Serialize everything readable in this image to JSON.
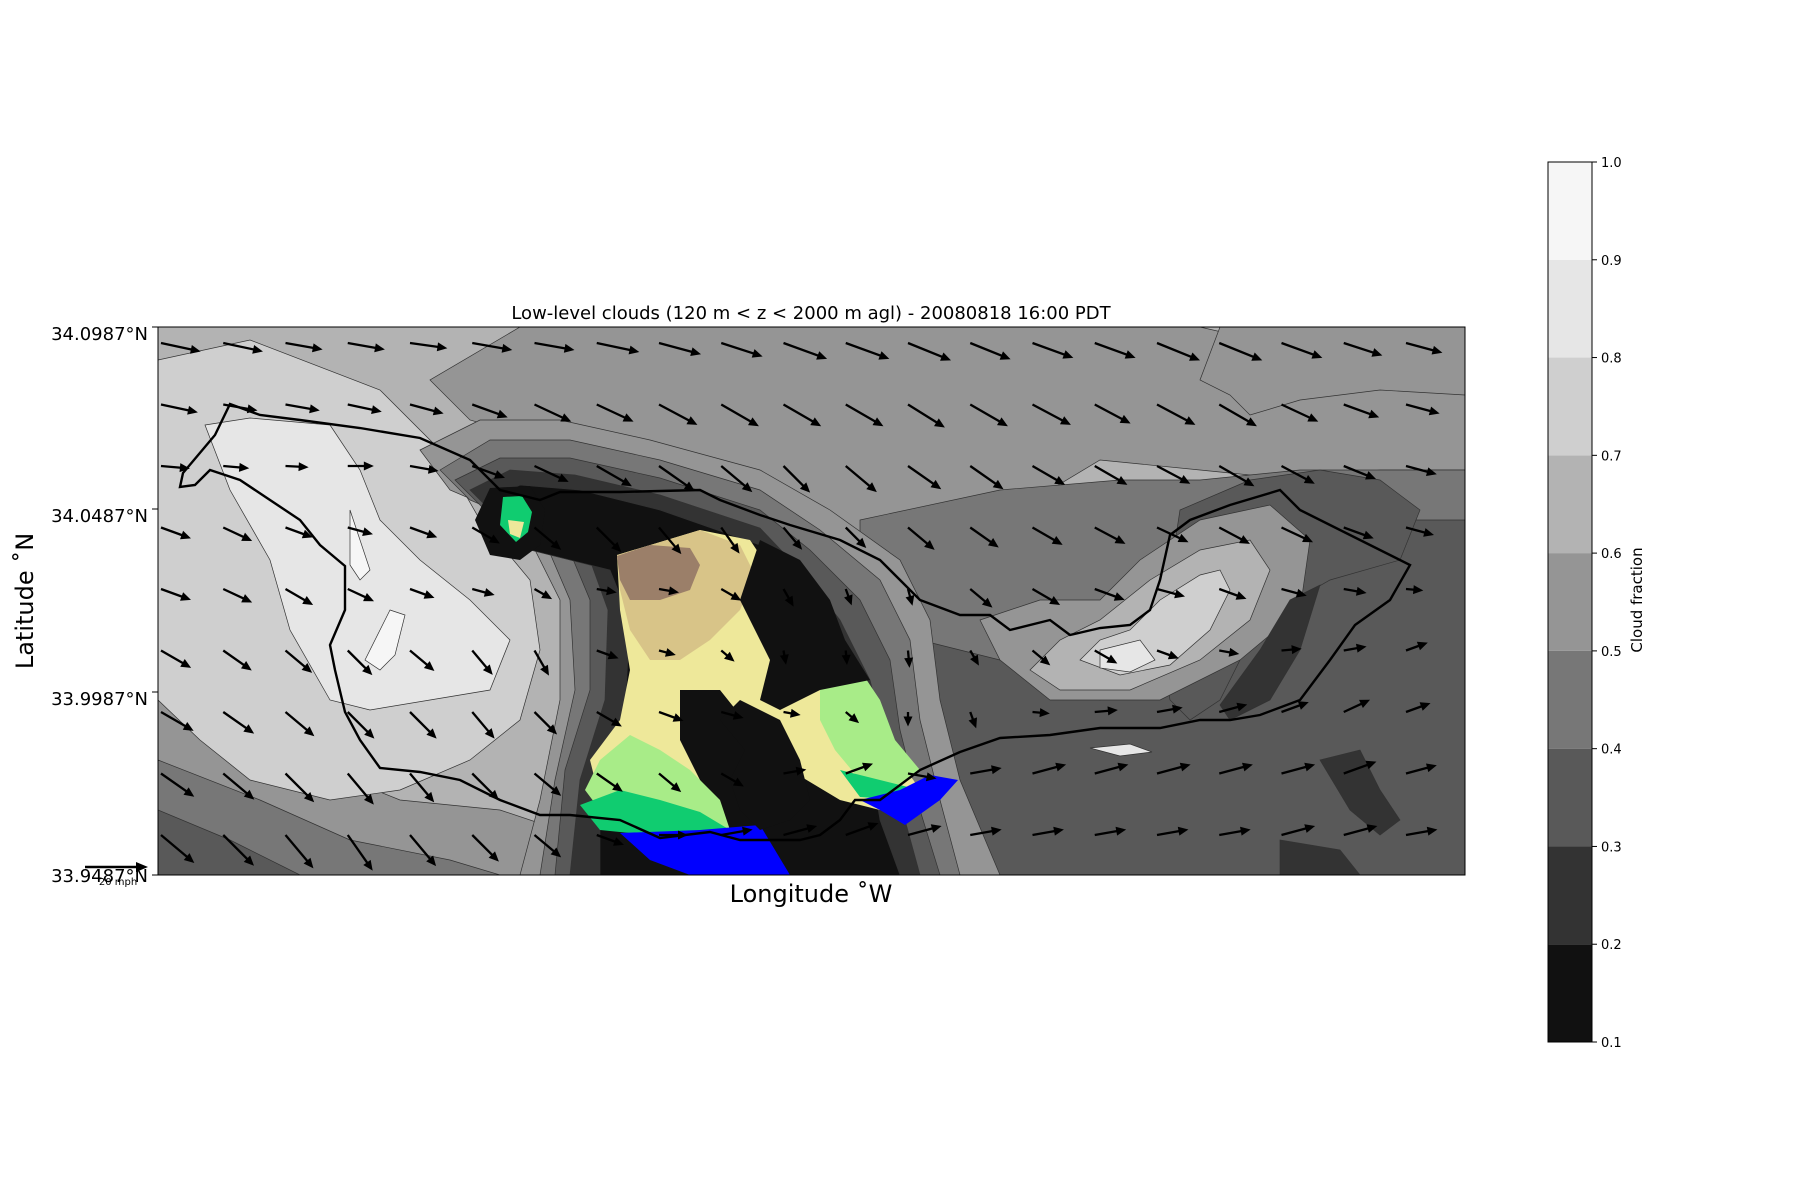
{
  "chart_data": {
    "type": "heatmap",
    "title": "Low-level clouds (120 m < z < 2000 m agl) - 20080818 16:00 PDT",
    "xlabel": "Longitude $^\\circ$W",
    "xlabel_display": "Longitude ˚W",
    "ylabel": "Latitude ˚N",
    "y_ticks": [
      "34.0987°N",
      "34.0487°N",
      "33.9987°N",
      "33.9487°N"
    ],
    "y_tick_values": [
      34.0987,
      34.0487,
      33.9987,
      33.9487
    ],
    "ylim": [
      33.9487,
      34.0987
    ],
    "quiver_key_label": "20 mph",
    "colorbar": {
      "label": "Cloud fraction",
      "ticks": [
        "0.1",
        "0.2",
        "0.3",
        "0.4",
        "0.5",
        "0.6",
        "0.7",
        "0.8",
        "0.9",
        "1.0"
      ],
      "range": [
        0.1,
        1.0
      ],
      "levels": [
        {
          "from": 0.1,
          "to": 0.2,
          "color": "#111111"
        },
        {
          "from": 0.2,
          "to": 0.3,
          "color": "#333333"
        },
        {
          "from": 0.3,
          "to": 0.4,
          "color": "#595959"
        },
        {
          "from": 0.4,
          "to": 0.5,
          "color": "#777777"
        },
        {
          "from": 0.5,
          "to": 0.6,
          "color": "#959595"
        },
        {
          "from": 0.6,
          "to": 0.7,
          "color": "#b3b3b3"
        },
        {
          "from": 0.7,
          "to": 0.8,
          "color": "#cfcfcf"
        },
        {
          "from": 0.8,
          "to": 0.9,
          "color": "#e6e6e6"
        },
        {
          "from": 0.9,
          "to": 1.0,
          "color": "#f6f6f6"
        }
      ]
    },
    "terrain_colors": {
      "water": "#0000ff",
      "low": "#10cc70",
      "mid_low": "#a8ec88",
      "mid": "#eee89a",
      "mid_high": "#d8c488",
      "high": "#9b7f69"
    },
    "wind_field": {
      "rows": 9,
      "cols": 21,
      "directions_deg": [
        [
          -12,
          -12,
          -10,
          -10,
          -8,
          -10,
          -10,
          -12,
          -15,
          -18,
          -20,
          -20,
          -22,
          -22,
          -20,
          -20,
          -22,
          -22,
          -20,
          -18,
          -15
        ],
        [
          -12,
          -10,
          -10,
          -12,
          -15,
          -20,
          -25,
          -25,
          -28,
          -30,
          -30,
          -30,
          -32,
          -30,
          -28,
          -28,
          -28,
          -30,
          -25,
          -20,
          -15
        ],
        [
          -5,
          -5,
          -3,
          0,
          -10,
          -20,
          -25,
          -30,
          -35,
          -40,
          -45,
          -40,
          -35,
          -35,
          -30,
          -30,
          -28,
          -30,
          -28,
          -22,
          -15
        ],
        [
          -20,
          -25,
          -20,
          -15,
          -20,
          -30,
          -40,
          -45,
          -50,
          -55,
          -50,
          -45,
          -40,
          -35,
          -30,
          -28,
          -25,
          -28,
          -25,
          -20,
          -15
        ],
        [
          -20,
          -25,
          -30,
          -25,
          -20,
          -15,
          -30,
          -10,
          -10,
          -30,
          -60,
          -70,
          -75,
          -40,
          -30,
          -20,
          -15,
          -20,
          -15,
          -10,
          -5
        ],
        [
          -30,
          -35,
          -40,
          -45,
          -40,
          -50,
          -60,
          -20,
          -15,
          -40,
          -80,
          -85,
          -85,
          -60,
          -40,
          -30,
          -20,
          -10,
          5,
          10,
          20
        ],
        [
          -30,
          -35,
          -40,
          -45,
          -45,
          -50,
          -45,
          -30,
          -20,
          -15,
          -10,
          -40,
          -90,
          -70,
          -5,
          5,
          10,
          15,
          20,
          25,
          20
        ],
        [
          -35,
          -40,
          -45,
          -50,
          -50,
          -45,
          -40,
          -35,
          -40,
          -30,
          10,
          20,
          -10,
          10,
          15,
          15,
          15,
          15,
          15,
          20,
          15
        ],
        [
          -40,
          -45,
          -50,
          -55,
          -50,
          -45,
          -40,
          -20,
          0,
          10,
          15,
          20,
          15,
          10,
          10,
          10,
          10,
          10,
          15,
          15,
          10
        ]
      ],
      "speeds_mph": [
        [
          14,
          14,
          13,
          13,
          13,
          14,
          14,
          15,
          15,
          15,
          16,
          16,
          16,
          15,
          15,
          15,
          16,
          16,
          15,
          14,
          13
        ],
        [
          13,
          12,
          12,
          12,
          12,
          13,
          14,
          14,
          15,
          15,
          15,
          15,
          15,
          15,
          15,
          14,
          15,
          15,
          14,
          13,
          12
        ],
        [
          10,
          9,
          8,
          9,
          10,
          12,
          13,
          14,
          15,
          14,
          13,
          14,
          14,
          14,
          13,
          13,
          13,
          14,
          13,
          12,
          11
        ],
        [
          11,
          11,
          10,
          9,
          10,
          11,
          12,
          12,
          12,
          11,
          10,
          10,
          12,
          12,
          12,
          12,
          12,
          12,
          12,
          11,
          10
        ],
        [
          11,
          11,
          11,
          10,
          9,
          8,
          7,
          7,
          7,
          8,
          7,
          6,
          6,
          10,
          11,
          11,
          10,
          10,
          9,
          8,
          6
        ],
        [
          12,
          12,
          12,
          12,
          11,
          11,
          10,
          8,
          6,
          6,
          5,
          5,
          6,
          6,
          8,
          9,
          8,
          7,
          7,
          8,
          8
        ],
        [
          13,
          13,
          13,
          13,
          13,
          12,
          11,
          10,
          9,
          8,
          6,
          6,
          5,
          6,
          6,
          8,
          9,
          10,
          10,
          10,
          9
        ],
        [
          14,
          14,
          14,
          14,
          13,
          13,
          12,
          11,
          10,
          9,
          8,
          10,
          10,
          11,
          12,
          12,
          12,
          12,
          12,
          12,
          11
        ],
        [
          15,
          15,
          15,
          15,
          14,
          13,
          12,
          10,
          10,
          11,
          12,
          12,
          12,
          11,
          11,
          11,
          11,
          11,
          12,
          12,
          11
        ]
      ]
    }
  }
}
